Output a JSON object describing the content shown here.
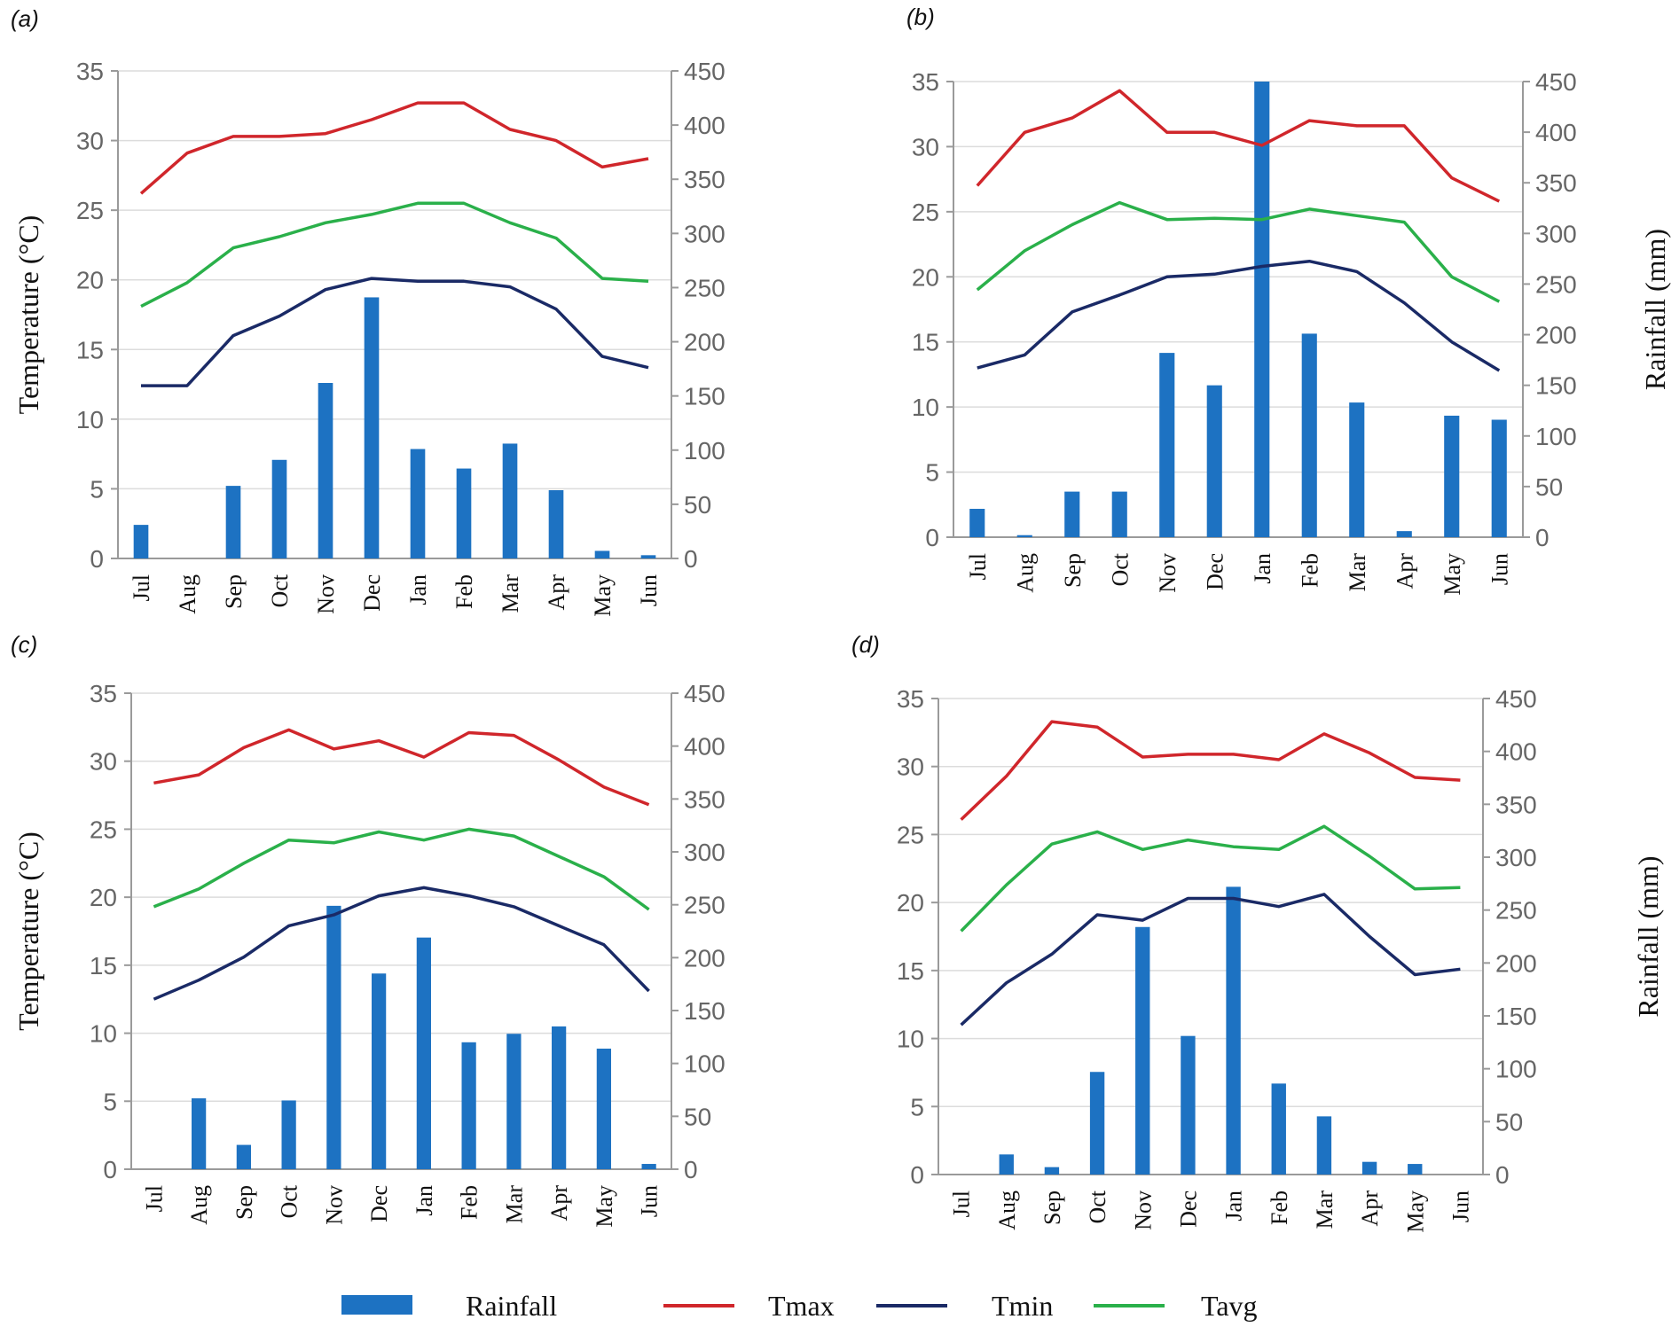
{
  "figure": {
    "legend": [
      {
        "name": "Rainfall",
        "kind": "bar",
        "color": "#1d72c2"
      },
      {
        "name": "Tmax",
        "kind": "line",
        "color": "#d0262b"
      },
      {
        "name": "Tmin",
        "kind": "line",
        "color": "#1a2a66"
      },
      {
        "name": "Tavg",
        "kind": "line",
        "color": "#2ab04a"
      }
    ]
  },
  "chart_data": [
    {
      "panel": "(a)",
      "type": "bar+line",
      "categories": [
        "Jul",
        "Aug",
        "Sep",
        "Oct",
        "Nov",
        "Dec",
        "Jan",
        "Feb",
        "Mar",
        "Apr",
        "May",
        "Jun"
      ],
      "ylabel": "Temperature (°C)",
      "y2label": "",
      "ylim": [
        0,
        35
      ],
      "yticks": [
        0,
        5,
        10,
        15,
        20,
        25,
        30,
        35
      ],
      "y2lim": [
        0,
        450
      ],
      "y2ticks": [
        0,
        50,
        100,
        150,
        200,
        250,
        300,
        350,
        400,
        450
      ],
      "rainfall": [
        31,
        0,
        67,
        91,
        162,
        241,
        101,
        83,
        106,
        63,
        7,
        3
      ],
      "series": [
        {
          "name": "Tmax",
          "values": [
            26.2,
            29.1,
            30.3,
            30.3,
            30.5,
            31.5,
            32.7,
            32.7,
            30.8,
            30.0,
            28.1,
            28.7
          ]
        },
        {
          "name": "Tavg",
          "values": [
            18.1,
            19.8,
            22.3,
            23.1,
            24.1,
            24.7,
            25.5,
            25.5,
            24.1,
            23.0,
            20.1,
            19.9
          ]
        },
        {
          "name": "Tmin",
          "values": [
            12.4,
            12.4,
            16.0,
            17.4,
            19.3,
            20.1,
            19.9,
            19.9,
            19.5,
            17.9,
            14.5,
            13.7
          ]
        }
      ]
    },
    {
      "panel": "(b)",
      "type": "bar+line",
      "categories": [
        "Jul",
        "Aug",
        "Sep",
        "Oct",
        "Nov",
        "Dec",
        "Jan",
        "Feb",
        "Mar",
        "Apr",
        "May",
        "Jun"
      ],
      "ylabel": "",
      "y2label": "Rainfall (mm)",
      "ylim": [
        0,
        35
      ],
      "yticks": [
        0,
        5,
        10,
        15,
        20,
        25,
        30,
        35
      ],
      "y2lim": [
        0,
        450
      ],
      "y2ticks": [
        0,
        50,
        100,
        150,
        200,
        250,
        300,
        350,
        400,
        450
      ],
      "rainfall": [
        28,
        2,
        45,
        45,
        182,
        150,
        450,
        201,
        133,
        6,
        120,
        116
      ],
      "series": [
        {
          "name": "Tmax",
          "values": [
            27.0,
            31.1,
            32.2,
            34.3,
            31.1,
            31.1,
            30.1,
            32.0,
            31.6,
            31.6,
            27.6,
            25.8
          ]
        },
        {
          "name": "Tavg",
          "values": [
            19.0,
            22.0,
            24.0,
            25.7,
            24.4,
            24.5,
            24.4,
            25.2,
            24.7,
            24.2,
            20.0,
            18.1
          ]
        },
        {
          "name": "Tmin",
          "values": [
            13.0,
            14.0,
            17.3,
            18.6,
            20.0,
            20.2,
            20.8,
            21.2,
            20.4,
            18.0,
            15.0,
            12.8
          ]
        }
      ]
    },
    {
      "panel": "(c)",
      "type": "bar+line",
      "categories": [
        "Jul",
        "Aug",
        "Sep",
        "Oct",
        "Nov",
        "Dec",
        "Jan",
        "Feb",
        "Mar",
        "Apr",
        "May",
        "Jun"
      ],
      "ylabel": "Temperature (°C)",
      "y2label": "",
      "ylim": [
        0,
        35
      ],
      "yticks": [
        0,
        5,
        10,
        15,
        20,
        25,
        30,
        35
      ],
      "y2lim": [
        0,
        450
      ],
      "y2ticks": [
        0,
        50,
        100,
        150,
        200,
        250,
        300,
        350,
        400,
        450
      ],
      "rainfall": [
        0,
        67,
        23,
        65,
        249,
        185,
        219,
        120,
        128,
        135,
        114,
        5
      ],
      "series": [
        {
          "name": "Tmax",
          "values": [
            28.4,
            29.0,
            31.0,
            32.3,
            30.9,
            31.5,
            30.3,
            32.1,
            31.9,
            30.1,
            28.1,
            26.8
          ]
        },
        {
          "name": "Tavg",
          "values": [
            19.3,
            20.6,
            22.5,
            24.2,
            24.0,
            24.8,
            24.2,
            25.0,
            24.5,
            23.0,
            21.5,
            19.1
          ]
        },
        {
          "name": "Tmin",
          "values": [
            12.5,
            13.9,
            15.6,
            17.9,
            18.7,
            20.1,
            20.7,
            20.1,
            19.3,
            17.9,
            16.5,
            13.1
          ]
        }
      ]
    },
    {
      "panel": "(d)",
      "type": "bar+line",
      "categories": [
        "Jul",
        "Aug",
        "Sep",
        "Oct",
        "Nov",
        "Dec",
        "Jan",
        "Feb",
        "Mar",
        "Apr",
        "May",
        "Jun"
      ],
      "ylabel": "",
      "y2label": "Rainfall (mm)",
      "ylim": [
        0,
        35
      ],
      "yticks": [
        0,
        5,
        10,
        15,
        20,
        25,
        30,
        35
      ],
      "y2lim": [
        0,
        450
      ],
      "y2ticks": [
        0,
        50,
        100,
        150,
        200,
        250,
        300,
        350,
        400,
        450
      ],
      "rainfall": [
        0,
        19,
        7,
        97,
        234,
        131,
        272,
        86,
        55,
        12,
        10,
        0
      ],
      "series": [
        {
          "name": "Tmax",
          "values": [
            26.1,
            29.3,
            33.3,
            32.9,
            30.7,
            30.9,
            30.9,
            30.5,
            32.4,
            31.0,
            29.2,
            29.0
          ]
        },
        {
          "name": "Tavg",
          "values": [
            17.9,
            21.3,
            24.3,
            25.2,
            23.9,
            24.6,
            24.1,
            23.9,
            25.6,
            23.4,
            21.0,
            21.1
          ]
        },
        {
          "name": "Tmin",
          "values": [
            11.0,
            14.1,
            16.2,
            19.1,
            18.7,
            20.3,
            20.3,
            19.7,
            20.6,
            17.5,
            14.7,
            15.1
          ]
        }
      ]
    }
  ]
}
